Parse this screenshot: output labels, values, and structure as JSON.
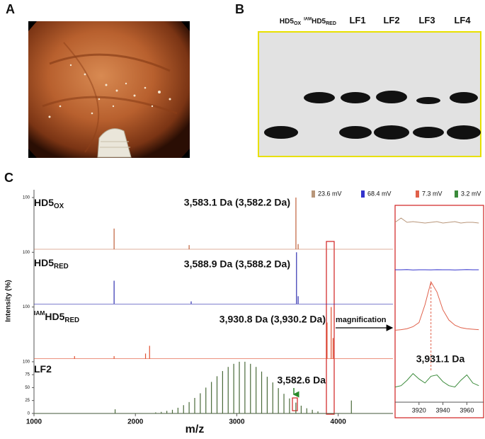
{
  "panels": {
    "a": "A",
    "b": "B",
    "c": "C"
  },
  "blot": {
    "lanes": [
      {
        "main": "HD5",
        "sub": "OX"
      },
      {
        "sup": "IAM",
        "main": "HD5",
        "sub": "RED"
      },
      {
        "main": "LF1"
      },
      {
        "main": "LF2"
      },
      {
        "main": "LF3"
      },
      {
        "main": "LF4"
      }
    ]
  },
  "chart_data": {
    "type": "spectra",
    "ylabel": "Intensity (%)",
    "xlabel": "m/z",
    "xlim": [
      1000,
      4540
    ],
    "xticks": [
      1000,
      2000,
      3000,
      4000
    ],
    "ylim": [
      0,
      100
    ],
    "magnification": "magnification",
    "series": [
      {
        "name": "HD5",
        "name_sub": "OX",
        "color": "#c0603a",
        "annotation": "3,583.1 Da (3,582.2 Da)",
        "yticks": [
          100
        ],
        "x": [
          1790,
          2530,
          3583.1,
          3605
        ],
        "values": [
          40,
          8,
          100,
          10
        ]
      },
      {
        "name": "HD5",
        "name_sub": "RED",
        "color": "#3030b0",
        "annotation": "3,588.9 Da (3,588.2 Da)",
        "yticks": [
          100
        ],
        "x": [
          1790,
          2550,
          3588.9,
          3605
        ],
        "values": [
          45,
          5,
          100,
          15
        ]
      },
      {
        "name": "HD5",
        "name_sup": "IAM",
        "name_sub": "RED",
        "color": "#e05030",
        "annotation": "3,930.8 Da (3,930.2 Da)",
        "yticks": [
          100
        ],
        "x": [
          1400,
          1790,
          2100,
          2140,
          3890,
          3930.8,
          3950
        ],
        "values": [
          5,
          5,
          10,
          25,
          70,
          100,
          40
        ]
      },
      {
        "name": "LF2",
        "color": "#4a6a3a",
        "annotation": "3,582.6 Da",
        "yticks": [
          0,
          25,
          50,
          75,
          100
        ],
        "x": [
          1800,
          2200,
          2255,
          2310,
          2365,
          2420,
          2475,
          2530,
          2585,
          2640,
          2695,
          2750,
          2805,
          2860,
          2915,
          2970,
          3025,
          3080,
          3135,
          3190,
          3245,
          3300,
          3355,
          3410,
          3465,
          3520,
          3582.6,
          3635,
          3690,
          3745,
          3800,
          4130
        ],
        "values": [
          8,
          2,
          3,
          5,
          7,
          11,
          16,
          22,
          30,
          39,
          50,
          61,
          72,
          82,
          90,
          96,
          100,
          100,
          96,
          90,
          81,
          71,
          60,
          49,
          38,
          29,
          21,
          15,
          10,
          7,
          4,
          25
        ]
      }
    ],
    "inset": {
      "annotation": "3,931.1 Da",
      "xlim": [
        3900,
        3974
      ],
      "xticks": [
        3920,
        3940,
        3960
      ],
      "x": [
        3900,
        3905,
        3910,
        3915,
        3920,
        3925,
        3930,
        3935,
        3940,
        3945,
        3950,
        3955,
        3960,
        3965,
        3970
      ],
      "series": [
        {
          "name": "23.6 mV",
          "color": "#b8967a",
          "values": [
            30,
            60,
            30,
            35,
            30,
            25,
            30,
            35,
            25,
            30,
            35,
            25,
            30,
            30,
            25
          ]
        },
        {
          "name": "68.4 mV",
          "color": "#3333cc",
          "values": [
            50,
            50,
            52,
            48,
            50,
            50,
            49,
            51,
            50,
            50,
            48,
            50,
            52,
            50,
            50
          ]
        },
        {
          "name": "7.3 mV",
          "color": "#e0604a",
          "values": [
            5,
            6,
            8,
            12,
            20,
            55,
            100,
            80,
            45,
            25,
            15,
            10,
            8,
            7,
            6
          ]
        },
        {
          "name": "3.2 mV",
          "color": "#3a8a3a",
          "values": [
            30,
            35,
            55,
            80,
            60,
            45,
            70,
            75,
            50,
            35,
            30,
            55,
            75,
            45,
            35
          ]
        }
      ]
    }
  }
}
